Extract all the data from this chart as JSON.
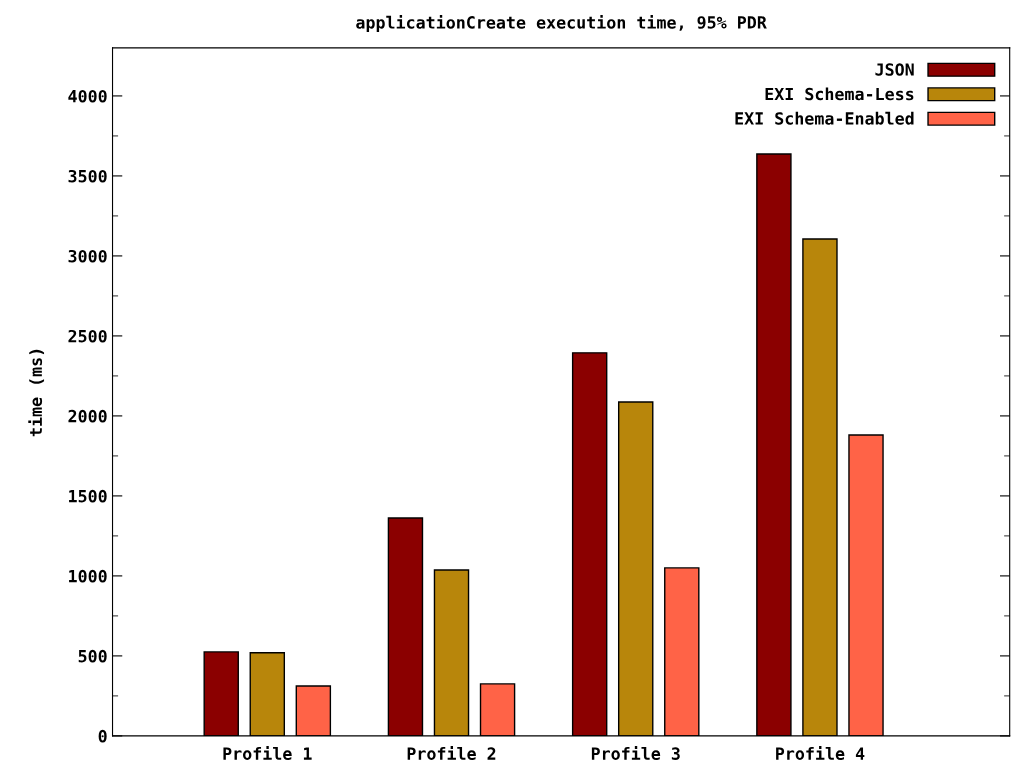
{
  "chart_data": {
    "type": "bar",
    "title": "applicationCreate execution time, 95% PDR",
    "ylabel": "time (ms)",
    "categories": [
      "Profile 1",
      "Profile 2",
      "Profile 3",
      "Profile 4"
    ],
    "series": [
      {
        "name": "JSON",
        "color": "#8b0000",
        "values": [
          525,
          1362,
          2394,
          3637
        ]
      },
      {
        "name": "EXI Schema-Less",
        "color": "#b8860b",
        "values": [
          520,
          1037,
          2087,
          3106
        ]
      },
      {
        "name": "EXI Schema-Enabled",
        "color": "#ff6347",
        "values": [
          312,
          325,
          1050,
          1881
        ]
      }
    ],
    "ylim": [
      0,
      4300
    ],
    "yticks": [
      0,
      500,
      1000,
      1500,
      2000,
      2500,
      3000,
      3500,
      4000
    ],
    "grid": false,
    "legend": "top right"
  }
}
